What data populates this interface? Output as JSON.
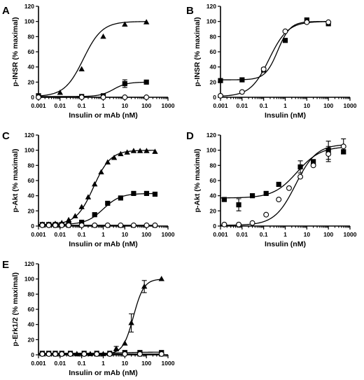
{
  "figure": {
    "colors": {
      "ink": "#000000",
      "background": "#ffffff",
      "open_marker_fill": "#ffffff"
    }
  },
  "chart_data": [
    {
      "panel": "A",
      "type": "scatter",
      "xscale": "log",
      "xlabel": "Insulin or mAb (nM)",
      "ylabel": "p-INSR (% maximal)",
      "xlim": [
        0.001,
        1000
      ],
      "ylim": [
        0,
        120
      ],
      "xticks": [
        "0.001",
        "0.01",
        "0.1",
        "1",
        "10",
        "100",
        "1000"
      ],
      "yticks": [
        "0",
        "20",
        "40",
        "60",
        "80",
        "100",
        "120"
      ],
      "series": [
        {
          "marker": "triangle",
          "x": [
            0.001,
            0.01,
            0.1,
            1,
            10,
            100
          ],
          "y": [
            2,
            6,
            37,
            80,
            96,
            99
          ],
          "fit": {
            "bottom": 1,
            "top": 100,
            "ec50": 0.12,
            "hill": 1.0
          }
        },
        {
          "marker": "square",
          "x": [
            0.001,
            0.1,
            1,
            10,
            100
          ],
          "y": [
            2,
            1,
            2,
            18,
            20
          ],
          "err": [
            0,
            0,
            0,
            5,
            0
          ],
          "fit": {
            "bottom": 1,
            "top": 20,
            "ec50": 3.0,
            "hill": 1.4
          }
        },
        {
          "marker": "circle",
          "x": [
            0.001,
            0.1,
            1,
            10,
            100
          ],
          "y": [
            0,
            0,
            0,
            0,
            0
          ],
          "fit": {
            "bottom": 0,
            "top": 0,
            "ec50": 1,
            "hill": 1
          }
        }
      ]
    },
    {
      "panel": "B",
      "type": "scatter",
      "xscale": "log",
      "xlabel": "Insulin (nM)",
      "ylabel": "p-INSR (% maximal)",
      "xlim": [
        0.001,
        1000
      ],
      "ylim": [
        0,
        120
      ],
      "xticks": [
        "0.001",
        "0.01",
        "0.1",
        "1",
        "10",
        "100",
        "1000"
      ],
      "yticks": [
        "0",
        "20",
        "40",
        "60",
        "80",
        "100",
        "120"
      ],
      "series": [
        {
          "marker": "square",
          "x": [
            0.001,
            0.01,
            0.1,
            1,
            10,
            100
          ],
          "y": [
            22,
            23,
            36,
            75,
            102,
            97
          ],
          "fit": {
            "bottom": 23,
            "top": 100,
            "ec50": 0.45,
            "hill": 1.5
          }
        },
        {
          "marker": "circle",
          "x": [
            0.001,
            0.01,
            0.1,
            1,
            10,
            100
          ],
          "y": [
            2,
            7,
            37,
            87,
            99,
            99
          ],
          "fit": {
            "bottom": 1,
            "top": 100,
            "ec50": 0.18,
            "hill": 1.0
          }
        }
      ]
    },
    {
      "panel": "C",
      "type": "scatter",
      "xscale": "log",
      "xlabel": "Insulin or mAb (nM)",
      "ylabel": "p-Akt (% maximal)",
      "xlim": [
        0.001,
        1000
      ],
      "ylim": [
        0,
        120
      ],
      "xticks": [
        "0.001",
        "0.01",
        "0.1",
        "1",
        "10",
        "100",
        "1000"
      ],
      "yticks": [
        "0",
        "20",
        "40",
        "60",
        "80",
        "100",
        "120"
      ],
      "series": [
        {
          "marker": "triangle",
          "x": [
            0.0015,
            0.003,
            0.006,
            0.012,
            0.025,
            0.05,
            0.1,
            0.2,
            0.4,
            0.8,
            1.6,
            3.2,
            6.4,
            12.8,
            25.6,
            51,
            102,
            250
          ],
          "y": [
            2,
            2,
            3,
            4,
            8,
            13,
            25,
            38,
            55,
            71,
            84,
            90,
            95,
            97,
            99,
            99,
            99,
            98
          ],
          "fit": {
            "bottom": 2,
            "top": 100,
            "ec50": 0.35,
            "hill": 1.1
          }
        },
        {
          "marker": "square",
          "x": [
            0.0015,
            0.003,
            0.006,
            0.012,
            0.025,
            0.1,
            0.4,
            1.6,
            6.4,
            25.6,
            102,
            250
          ],
          "y": [
            2,
            2,
            2,
            2,
            3,
            5,
            15,
            30,
            37,
            43,
            43,
            42
          ],
          "fit": {
            "bottom": 2,
            "top": 43,
            "ec50": 1.0,
            "hill": 1.1
          }
        },
        {
          "marker": "circle",
          "x": [
            0.0015,
            0.003,
            0.006,
            0.012,
            0.025,
            0.1,
            0.4,
            1.6,
            6.4,
            25.6,
            102,
            250
          ],
          "y": [
            1,
            1,
            1,
            1,
            1,
            1,
            1,
            1,
            1,
            1,
            1,
            1
          ],
          "fit": {
            "bottom": 1,
            "top": 1,
            "ec50": 1,
            "hill": 1
          }
        }
      ]
    },
    {
      "panel": "D",
      "type": "scatter",
      "xscale": "log",
      "xlabel": "Insulin (nM)",
      "ylabel": "p-Akt (% maximal)",
      "xlim": [
        0.001,
        1000
      ],
      "ylim": [
        0,
        120
      ],
      "xticks": [
        "0.001",
        "0.01",
        "0.1",
        "1",
        "10",
        "100",
        "1000"
      ],
      "yticks": [
        "0",
        "20",
        "40",
        "60",
        "80",
        "100",
        "120"
      ],
      "series": [
        {
          "marker": "square",
          "x": [
            0.0015,
            0.007,
            0.03,
            0.13,
            0.5,
            5,
            20,
            100,
            500
          ],
          "y": [
            35,
            28,
            40,
            43,
            55,
            78,
            85,
            100,
            98
          ],
          "err": [
            0,
            8,
            0,
            0,
            0,
            8,
            0,
            12,
            0
          ],
          "fit": {
            "bottom": 37,
            "top": 105,
            "ec50": 3.5,
            "hill": 0.8
          }
        },
        {
          "marker": "circle",
          "x": [
            0.0015,
            0.007,
            0.03,
            0.13,
            0.5,
            1.5,
            5,
            20,
            100,
            500
          ],
          "y": [
            2,
            2,
            4,
            15,
            35,
            50,
            65,
            80,
            95,
            105
          ],
          "err": [
            0,
            0,
            0,
            0,
            0,
            0,
            0,
            0,
            10,
            10
          ],
          "fit": {
            "bottom": 1,
            "top": 108,
            "ec50": 3.0,
            "hill": 0.9
          }
        }
      ]
    },
    {
      "panel": "E",
      "type": "scatter",
      "xscale": "log",
      "xlabel": "Insulin or mAb (nM)",
      "ylabel": "p-Erk1/2 (% maximal)",
      "xlim": [
        0.001,
        1000
      ],
      "ylim": [
        0,
        120
      ],
      "xticks": [
        "0.001",
        "0.01",
        "0.1",
        "1",
        "10",
        "100",
        "1000"
      ],
      "yticks": [
        "0",
        "20",
        "40",
        "60",
        "80",
        "100",
        "120"
      ],
      "series": [
        {
          "marker": "triangle",
          "x": [
            0.0015,
            0.003,
            0.006,
            0.012,
            0.03,
            0.06,
            0.13,
            0.25,
            0.5,
            1,
            2,
            4,
            10,
            20,
            80,
            500
          ],
          "y": [
            1,
            1,
            1,
            1,
            1,
            1,
            1,
            1,
            1,
            1,
            1,
            8,
            15,
            42,
            90,
            100
          ],
          "err": [
            0,
            0,
            0,
            0,
            0,
            0,
            0,
            0,
            0,
            0,
            0,
            3,
            0,
            12,
            8,
            0
          ],
          "fit": {
            "bottom": 1,
            "top": 100,
            "ec50": 25,
            "hill": 1.8
          }
        },
        {
          "marker": "square",
          "x": [
            0.0015,
            0.003,
            0.006,
            0.012,
            0.03,
            0.13,
            0.5,
            2,
            10,
            50,
            500
          ],
          "y": [
            2,
            2,
            2,
            2,
            2,
            2,
            2,
            2,
            3,
            3,
            3
          ],
          "fit": {
            "bottom": 2,
            "top": 3.5,
            "ec50": 10,
            "hill": 1
          }
        },
        {
          "marker": "circle",
          "x": [
            0.0015,
            0.003,
            0.006,
            0.012,
            0.03,
            0.13,
            0.5,
            2,
            10,
            50,
            500
          ],
          "y": [
            1,
            1,
            1,
            1,
            1,
            1,
            1,
            1,
            1,
            1,
            1
          ],
          "fit": {
            "bottom": 1,
            "top": 1,
            "ec50": 1,
            "hill": 1
          }
        }
      ]
    }
  ]
}
